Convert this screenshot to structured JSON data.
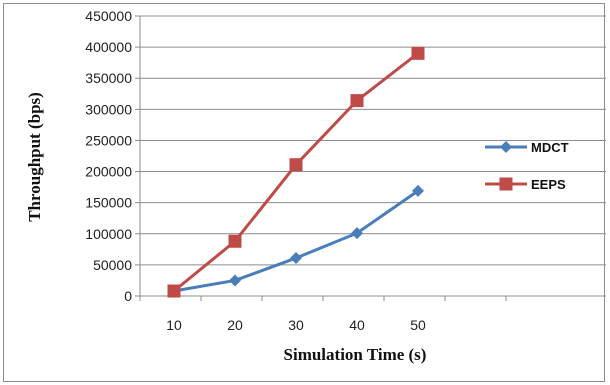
{
  "chart_data": {
    "type": "line",
    "categories": [
      "10",
      "20",
      "30",
      "40",
      "50"
    ],
    "series": [
      {
        "name": "MDCT",
        "values": [
          8000,
          25000,
          61000,
          101000,
          169000
        ],
        "color": "#4a7ebb",
        "marker": "diamond"
      },
      {
        "name": "EEPS",
        "values": [
          8000,
          88000,
          211000,
          314000,
          390000
        ],
        "color": "#be4b48",
        "marker": "square"
      }
    ],
    "xlabel": "Simulation Time (s)",
    "ylabel": "Throughput (bps)",
    "ylim": [
      0,
      450000
    ],
    "y_ticks": [
      0,
      50000,
      100000,
      150000,
      200000,
      250000,
      300000,
      350000,
      400000,
      450000
    ],
    "y_tick_labels": [
      "0",
      "50000",
      "100000",
      "150000",
      "200000",
      "250000",
      "300000",
      "350000",
      "400000",
      "450000"
    ],
    "grid": true,
    "legend_position": "right"
  }
}
